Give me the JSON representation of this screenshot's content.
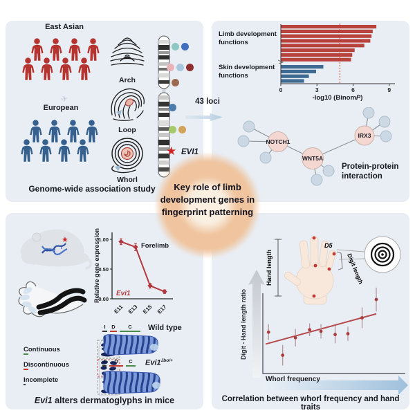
{
  "page": {
    "background": "#ffffff",
    "panel_background": "#e9eef4",
    "accent_peach": "#efc49e"
  },
  "center": {
    "headline": "Key role of limb development genes in fingerprint patterning",
    "loci_label": "43 loci"
  },
  "panel_gwas": {
    "title": "Genome-wide association study",
    "populations": [
      {
        "label": "East Asian",
        "color": "#b5342f",
        "count": 8
      },
      {
        "label": "European",
        "color": "#36618e",
        "count": 8
      }
    ],
    "fingerprint_types": [
      "Arch",
      "Loop",
      "Whorl"
    ],
    "gene_label": "EVI1",
    "star_color": "#cc2222",
    "locus_dot_rows": [
      {
        "colors": [
          "#8fc7c4",
          "#3f6fbe"
        ]
      },
      {
        "colors": [
          "#e8b4ba",
          "#a9c6df",
          "#8e3030"
        ]
      },
      {
        "colors": [
          "#9c6a4f"
        ]
      },
      {
        "colors": [
          "#4c7cab"
        ]
      },
      {
        "colors": [
          "#a5c96b",
          "#d2a35a"
        ]
      }
    ]
  },
  "panel_ppi": {
    "caption": "Protein-protein interaction",
    "network": {
      "hubs": [
        "NOTCH1",
        "WNT5A",
        "IRX3"
      ],
      "hub_color": "#f3d7d0",
      "satellite_color": "#ccd9e4"
    }
  },
  "panel_mouse": {
    "title_italic": "Evi1",
    "title_rest": " alters dermatoglyphs in mice",
    "ridge_legend": [
      {
        "letter": "C",
        "rest": "ontinuous",
        "color": "#4a8a4a"
      },
      {
        "letter": "D",
        "rest": "iscontinuous",
        "color": "#c0392b"
      },
      {
        "letter": "I",
        "rest": "ncomplete",
        "color": "#333333"
      }
    ],
    "genotypes": [
      {
        "label": "Wild type",
        "sup": "",
        "marks": [
          {
            "letter": "I",
            "color": "#333333",
            "width": 7
          },
          {
            "letter": "D",
            "color": "#c0392b",
            "width": 10
          },
          {
            "letter": "C",
            "color": "#4a8a4a",
            "width": 30
          }
        ]
      },
      {
        "label": "Evi1",
        "sup": "Jbo/+",
        "marks": [
          {
            "letter": "I",
            "color": "#333333",
            "width": 6
          },
          {
            "letter": "D",
            "color": "#c0392b",
            "width": 20
          },
          {
            "letter": "C",
            "color": "#4a8a4a",
            "width": 14
          }
        ]
      }
    ]
  },
  "panel_hand": {
    "title": "Correlation between whorl frequency and hand traits",
    "hand_length_label": "Hand length",
    "digit_length_label": "Digit length",
    "d5_label": "D5"
  },
  "chart_data": [
    {
      "id": "go-enrichment",
      "type": "bar",
      "orientation": "horizontal",
      "xlabel_pre": "-log10 (Binom",
      "xlabel_italic": "P",
      "xlabel_post": ")",
      "xticks": [
        0,
        3,
        6,
        9
      ],
      "xlim": [
        0,
        9.3
      ],
      "threshold": 4.9,
      "threshold_color": "#c0392b",
      "groups": [
        {
          "name": "Limb development functions",
          "color": "#b8433c",
          "values": [
            7.9,
            7.6,
            7.5,
            7.4,
            6.9,
            6.1,
            5.9,
            5.8
          ]
        },
        {
          "name": "Skin development functions",
          "color": "#3f6b92",
          "values": [
            3.5,
            2.9,
            2.3,
            1.9
          ]
        }
      ]
    },
    {
      "id": "evi1-expression",
      "type": "line",
      "color": "#b2383d",
      "ylabel": "Relative gene expression",
      "yticks": [
        "0.00",
        "0.50",
        "1.00"
      ],
      "categories": [
        "E11",
        "E13",
        "E15",
        "E17"
      ],
      "values": [
        0.96,
        0.87,
        0.22,
        0.12
      ],
      "errors": [
        0.05,
        0.06,
        0.04,
        0.03
      ],
      "series_label": "Forelimb",
      "gene_label": "Evi1",
      "ylim": [
        0,
        1.05
      ]
    },
    {
      "id": "whorl-digit-correlation",
      "type": "scatter",
      "color": "#a93c3c",
      "xlabel": "Whorl frequency",
      "ylabel": "Digit - Hand length ratio",
      "points": [
        {
          "x": 0.04,
          "y": 0.52,
          "err": 0.1
        },
        {
          "x": 0.14,
          "y": 0.23,
          "err": 0.13
        },
        {
          "x": 0.23,
          "y": 0.45,
          "err": 0.11
        },
        {
          "x": 0.33,
          "y": 0.55,
          "err": 0.08
        },
        {
          "x": 0.41,
          "y": 0.53,
          "err": 0.09
        },
        {
          "x": 0.51,
          "y": 0.49,
          "err": 0.11
        },
        {
          "x": 0.6,
          "y": 0.5,
          "err": 0.09
        },
        {
          "x": 0.7,
          "y": 0.7,
          "err": 0.13
        },
        {
          "x": 0.8,
          "y": 0.93,
          "err": 0.15
        }
      ],
      "trend": {
        "x1": 0.02,
        "y1": 0.37,
        "x2": 0.8,
        "y2": 0.75
      }
    }
  ]
}
